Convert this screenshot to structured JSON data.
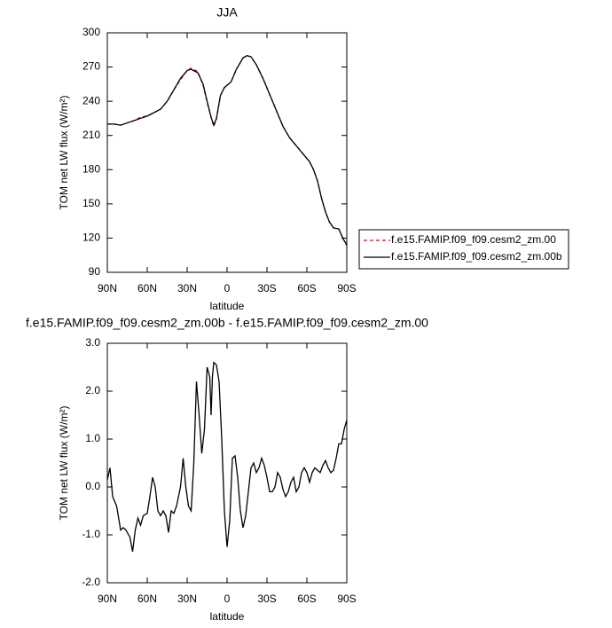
{
  "chart_data": [
    {
      "type": "line",
      "title": "JJA",
      "xlabel": "latitude",
      "ylabel": "TOM net LW flux (W/m²)",
      "xlim": [
        90,
        -90
      ],
      "xticks": [
        {
          "value": 90,
          "label": "90N"
        },
        {
          "value": 60,
          "label": "60N"
        },
        {
          "value": 30,
          "label": "30N"
        },
        0,
        {
          "value": -30,
          "label": "30S"
        },
        {
          "value": -60,
          "label": "60S"
        },
        {
          "value": -90,
          "label": "90S"
        }
      ],
      "ylim": [
        90,
        300
      ],
      "yticks": [
        90,
        120,
        150,
        180,
        210,
        240,
        270,
        300
      ],
      "legend": "right",
      "x": [
        90,
        85,
        80,
        75,
        70,
        65,
        60,
        55,
        50,
        45,
        40,
        35,
        30,
        27,
        22,
        18,
        15,
        12,
        10,
        8,
        5,
        2,
        0,
        -3,
        -7,
        -12,
        -15,
        -18,
        -22,
        -27,
        -32,
        -37,
        -42,
        -47,
        -52,
        -57,
        -62,
        -65,
        -68,
        -71,
        -74,
        -77,
        -80,
        -84,
        -87,
        -90
      ],
      "series": [
        {
          "name": "f.e15.FAMIP.f09_f09.cesm2_zm.00",
          "color": "#e00000",
          "linestyle": "dashed",
          "values": [
            220,
            220,
            219,
            221,
            223,
            226,
            227,
            230,
            233,
            240,
            250,
            259,
            267,
            269,
            266,
            254,
            239,
            226,
            218,
            224,
            245,
            252,
            254,
            257,
            268,
            278,
            280,
            279,
            272,
            260,
            246,
            232,
            218,
            208,
            201,
            194,
            187,
            180,
            170,
            155,
            143,
            134,
            129,
            128,
            120,
            113
          ]
        },
        {
          "name": "f.e15.FAMIP.f09_f09.cesm2_zm.00b",
          "color": "#000000",
          "linestyle": "solid",
          "values": [
            220,
            220,
            219,
            221,
            223,
            225,
            227,
            230,
            233,
            240,
            250,
            260,
            267,
            268,
            265,
            255,
            240,
            226,
            219,
            225,
            245,
            252,
            254,
            257,
            268,
            278,
            280,
            279,
            272,
            260,
            246,
            232,
            218,
            208,
            201,
            194,
            187,
            180,
            170,
            155,
            143,
            134,
            129,
            128,
            120,
            114
          ]
        }
      ]
    },
    {
      "type": "line",
      "title": "f.e15.FAMIP.f09_f09.cesm2_zm.00b - f.e15.FAMIP.f09_f09.cesm2_zm.00",
      "xlabel": "latitude",
      "ylabel": "TOM net LW flux (W/m²)",
      "xlim": [
        90,
        -90
      ],
      "xticks": [
        {
          "value": 90,
          "label": "90N"
        },
        {
          "value": 60,
          "label": "60N"
        },
        {
          "value": 30,
          "label": "30N"
        },
        0,
        {
          "value": -30,
          "label": "30S"
        },
        {
          "value": -60,
          "label": "60S"
        },
        {
          "value": -90,
          "label": "90S"
        }
      ],
      "ylim": [
        -2,
        3
      ],
      "yticks": [
        {
          "value": -2,
          "label": "-2.0"
        },
        {
          "value": -1,
          "label": "-1.0"
        },
        {
          "value": 0,
          "label": "0.0"
        },
        {
          "value": 1,
          "label": "1.0"
        },
        {
          "value": 2,
          "label": "2.0"
        },
        {
          "value": 3,
          "label": "3.0"
        }
      ],
      "x": [
        90,
        88,
        86,
        83,
        80,
        78,
        76,
        73,
        71,
        69,
        67,
        65,
        63,
        60,
        58,
        56,
        54,
        52,
        50,
        48,
        46,
        44,
        42,
        40,
        38,
        35,
        33,
        31,
        29,
        27,
        25,
        23,
        21,
        19,
        17,
        15,
        13,
        12,
        11,
        10,
        8,
        6,
        4,
        2,
        0,
        -2,
        -4,
        -6,
        -8,
        -10,
        -12,
        -14,
        -16,
        -18,
        -20,
        -22,
        -24,
        -26,
        -28,
        -30,
        -32,
        -34,
        -36,
        -38,
        -40,
        -42,
        -44,
        -46,
        -48,
        -50,
        -52,
        -54,
        -56,
        -58,
        -60,
        -62,
        -64,
        -66,
        -68,
        -70,
        -72,
        -74,
        -76,
        -78,
        -80,
        -82,
        -84,
        -86,
        -88,
        -90
      ],
      "series": [
        {
          "color": "#000000",
          "linestyle": "solid",
          "values": [
            0.15,
            0.4,
            -0.2,
            -0.4,
            -0.9,
            -0.85,
            -0.9,
            -1.05,
            -1.35,
            -0.9,
            -0.65,
            -0.8,
            -0.6,
            -0.55,
            -0.2,
            0.2,
            0.0,
            -0.5,
            -0.6,
            -0.5,
            -0.6,
            -0.95,
            -0.5,
            -0.55,
            -0.4,
            0.0,
            0.6,
            0.0,
            -0.4,
            -0.5,
            0.5,
            2.2,
            1.5,
            0.7,
            1.2,
            2.5,
            2.3,
            1.5,
            2.3,
            2.6,
            2.55,
            2.2,
            1.0,
            -0.5,
            -1.25,
            -0.7,
            0.6,
            0.65,
            0.2,
            -0.5,
            -0.85,
            -0.6,
            -0.1,
            0.4,
            0.5,
            0.3,
            0.4,
            0.6,
            0.45,
            0.2,
            -0.1,
            -0.1,
            0.0,
            0.3,
            0.2,
            -0.05,
            -0.2,
            -0.1,
            0.1,
            0.2,
            -0.1,
            0.0,
            0.3,
            0.4,
            0.3,
            0.1,
            0.3,
            0.4,
            0.35,
            0.3,
            0.45,
            0.55,
            0.4,
            0.3,
            0.35,
            0.6,
            0.9,
            0.9,
            1.2,
            1.4
          ]
        }
      ]
    }
  ]
}
